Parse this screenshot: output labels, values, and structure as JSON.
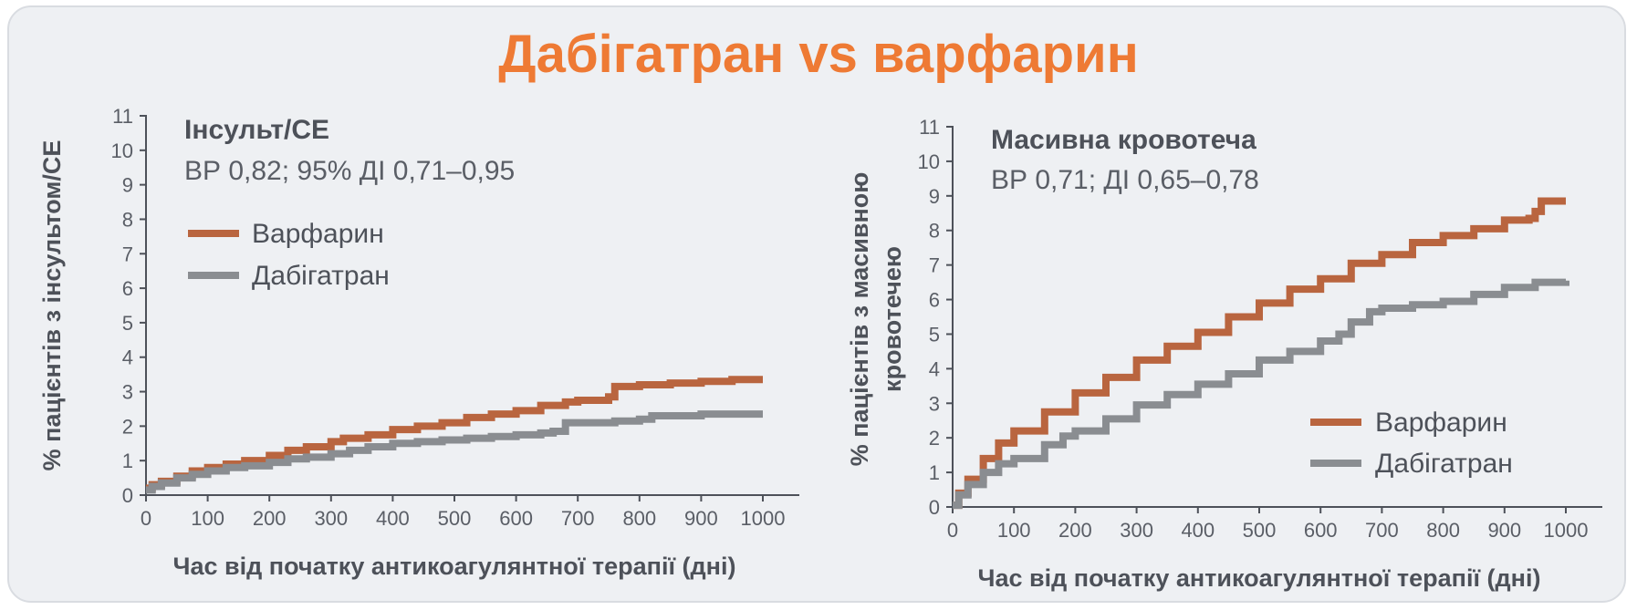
{
  "header": {
    "title": "Дабігатран vs варфарин"
  },
  "colors": {
    "warfarin": "#b9653f",
    "dabigatran": "#8a8d91",
    "title": "#ee7a34",
    "axis": "#4d5159"
  },
  "chart_data": [
    {
      "type": "line",
      "xlabel": "Час від початку антикоагулянтної терапії (дні)",
      "ylabel": "% пацієнтів з інсультом/СЕ",
      "xlim": [
        0,
        1000
      ],
      "ylim": [
        0,
        11
      ],
      "xticks": [
        0,
        100,
        200,
        300,
        400,
        500,
        600,
        700,
        800,
        900,
        1000
      ],
      "yticks": [
        0,
        1,
        2,
        3,
        4,
        5,
        6,
        7,
        8,
        9,
        10,
        11
      ],
      "annotation": {
        "title": "Інсульт/СЕ",
        "subtitle": "ВР 0,82; 95% ДІ 0,71–0,95"
      },
      "legend_position": "top-left",
      "series": [
        {
          "name": "Варфарин",
          "x": [
            0,
            10,
            25,
            50,
            75,
            100,
            130,
            160,
            200,
            230,
            260,
            300,
            320,
            360,
            400,
            440,
            480,
            520,
            560,
            600,
            640,
            680,
            700,
            750,
            760,
            800,
            850,
            900,
            950,
            1000
          ],
          "y": [
            0.2,
            0.3,
            0.4,
            0.55,
            0.7,
            0.8,
            0.9,
            1.0,
            1.15,
            1.3,
            1.4,
            1.55,
            1.65,
            1.75,
            1.9,
            2.0,
            2.1,
            2.25,
            2.35,
            2.45,
            2.6,
            2.7,
            2.75,
            2.85,
            3.15,
            3.2,
            3.25,
            3.3,
            3.35,
            3.35
          ]
        },
        {
          "name": "Дабігатран",
          "x": [
            0,
            10,
            25,
            50,
            75,
            100,
            130,
            160,
            200,
            230,
            260,
            300,
            330,
            360,
            400,
            440,
            480,
            520,
            560,
            600,
            640,
            660,
            680,
            720,
            760,
            800,
            820,
            860,
            900,
            950,
            1000
          ],
          "y": [
            0.15,
            0.25,
            0.35,
            0.5,
            0.6,
            0.7,
            0.8,
            0.85,
            0.95,
            1.05,
            1.1,
            1.2,
            1.3,
            1.4,
            1.5,
            1.55,
            1.6,
            1.65,
            1.7,
            1.75,
            1.8,
            1.85,
            2.1,
            2.1,
            2.15,
            2.2,
            2.3,
            2.3,
            2.35,
            2.35,
            2.35
          ]
        }
      ]
    },
    {
      "type": "line",
      "xlabel": "Час від початку антикоагулянтної терапії (дні)",
      "ylabel": "% пацієнтів з масивною кровотечею",
      "ylabel_lines": [
        "% пацієнтів з масивною",
        "кровотечею"
      ],
      "xlim": [
        0,
        1000
      ],
      "ylim": [
        0,
        11
      ],
      "xticks": [
        0,
        100,
        200,
        300,
        400,
        500,
        600,
        700,
        800,
        900,
        1000
      ],
      "yticks": [
        0,
        1,
        2,
        3,
        4,
        5,
        6,
        7,
        8,
        9,
        10,
        11
      ],
      "annotation": {
        "title": "Масивна кровотеча",
        "subtitle": "ВР 0,71; ДІ 0,65–0,78"
      },
      "legend_position": "bottom-right",
      "series": [
        {
          "name": "Варфарин",
          "x": [
            0,
            10,
            25,
            50,
            75,
            100,
            150,
            200,
            250,
            300,
            350,
            400,
            450,
            500,
            550,
            600,
            650,
            700,
            750,
            800,
            850,
            900,
            940,
            950,
            960,
            1000
          ],
          "y": [
            0.05,
            0.4,
            0.8,
            1.4,
            1.85,
            2.2,
            2.75,
            3.3,
            3.75,
            4.25,
            4.65,
            5.05,
            5.5,
            5.9,
            6.3,
            6.6,
            7.05,
            7.3,
            7.65,
            7.85,
            8.05,
            8.3,
            8.35,
            8.55,
            8.85,
            8.85
          ]
        },
        {
          "name": "Дабігатран",
          "x": [
            0,
            10,
            25,
            50,
            75,
            100,
            150,
            180,
            200,
            250,
            300,
            350,
            400,
            450,
            500,
            550,
            600,
            630,
            650,
            680,
            700,
            750,
            800,
            850,
            900,
            950,
            1000
          ],
          "y": [
            0.05,
            0.35,
            0.65,
            1.0,
            1.25,
            1.4,
            1.8,
            2.05,
            2.2,
            2.55,
            2.95,
            3.25,
            3.55,
            3.85,
            4.25,
            4.5,
            4.8,
            5.0,
            5.35,
            5.65,
            5.75,
            5.85,
            5.95,
            6.15,
            6.35,
            6.5,
            6.55
          ]
        }
      ]
    }
  ]
}
